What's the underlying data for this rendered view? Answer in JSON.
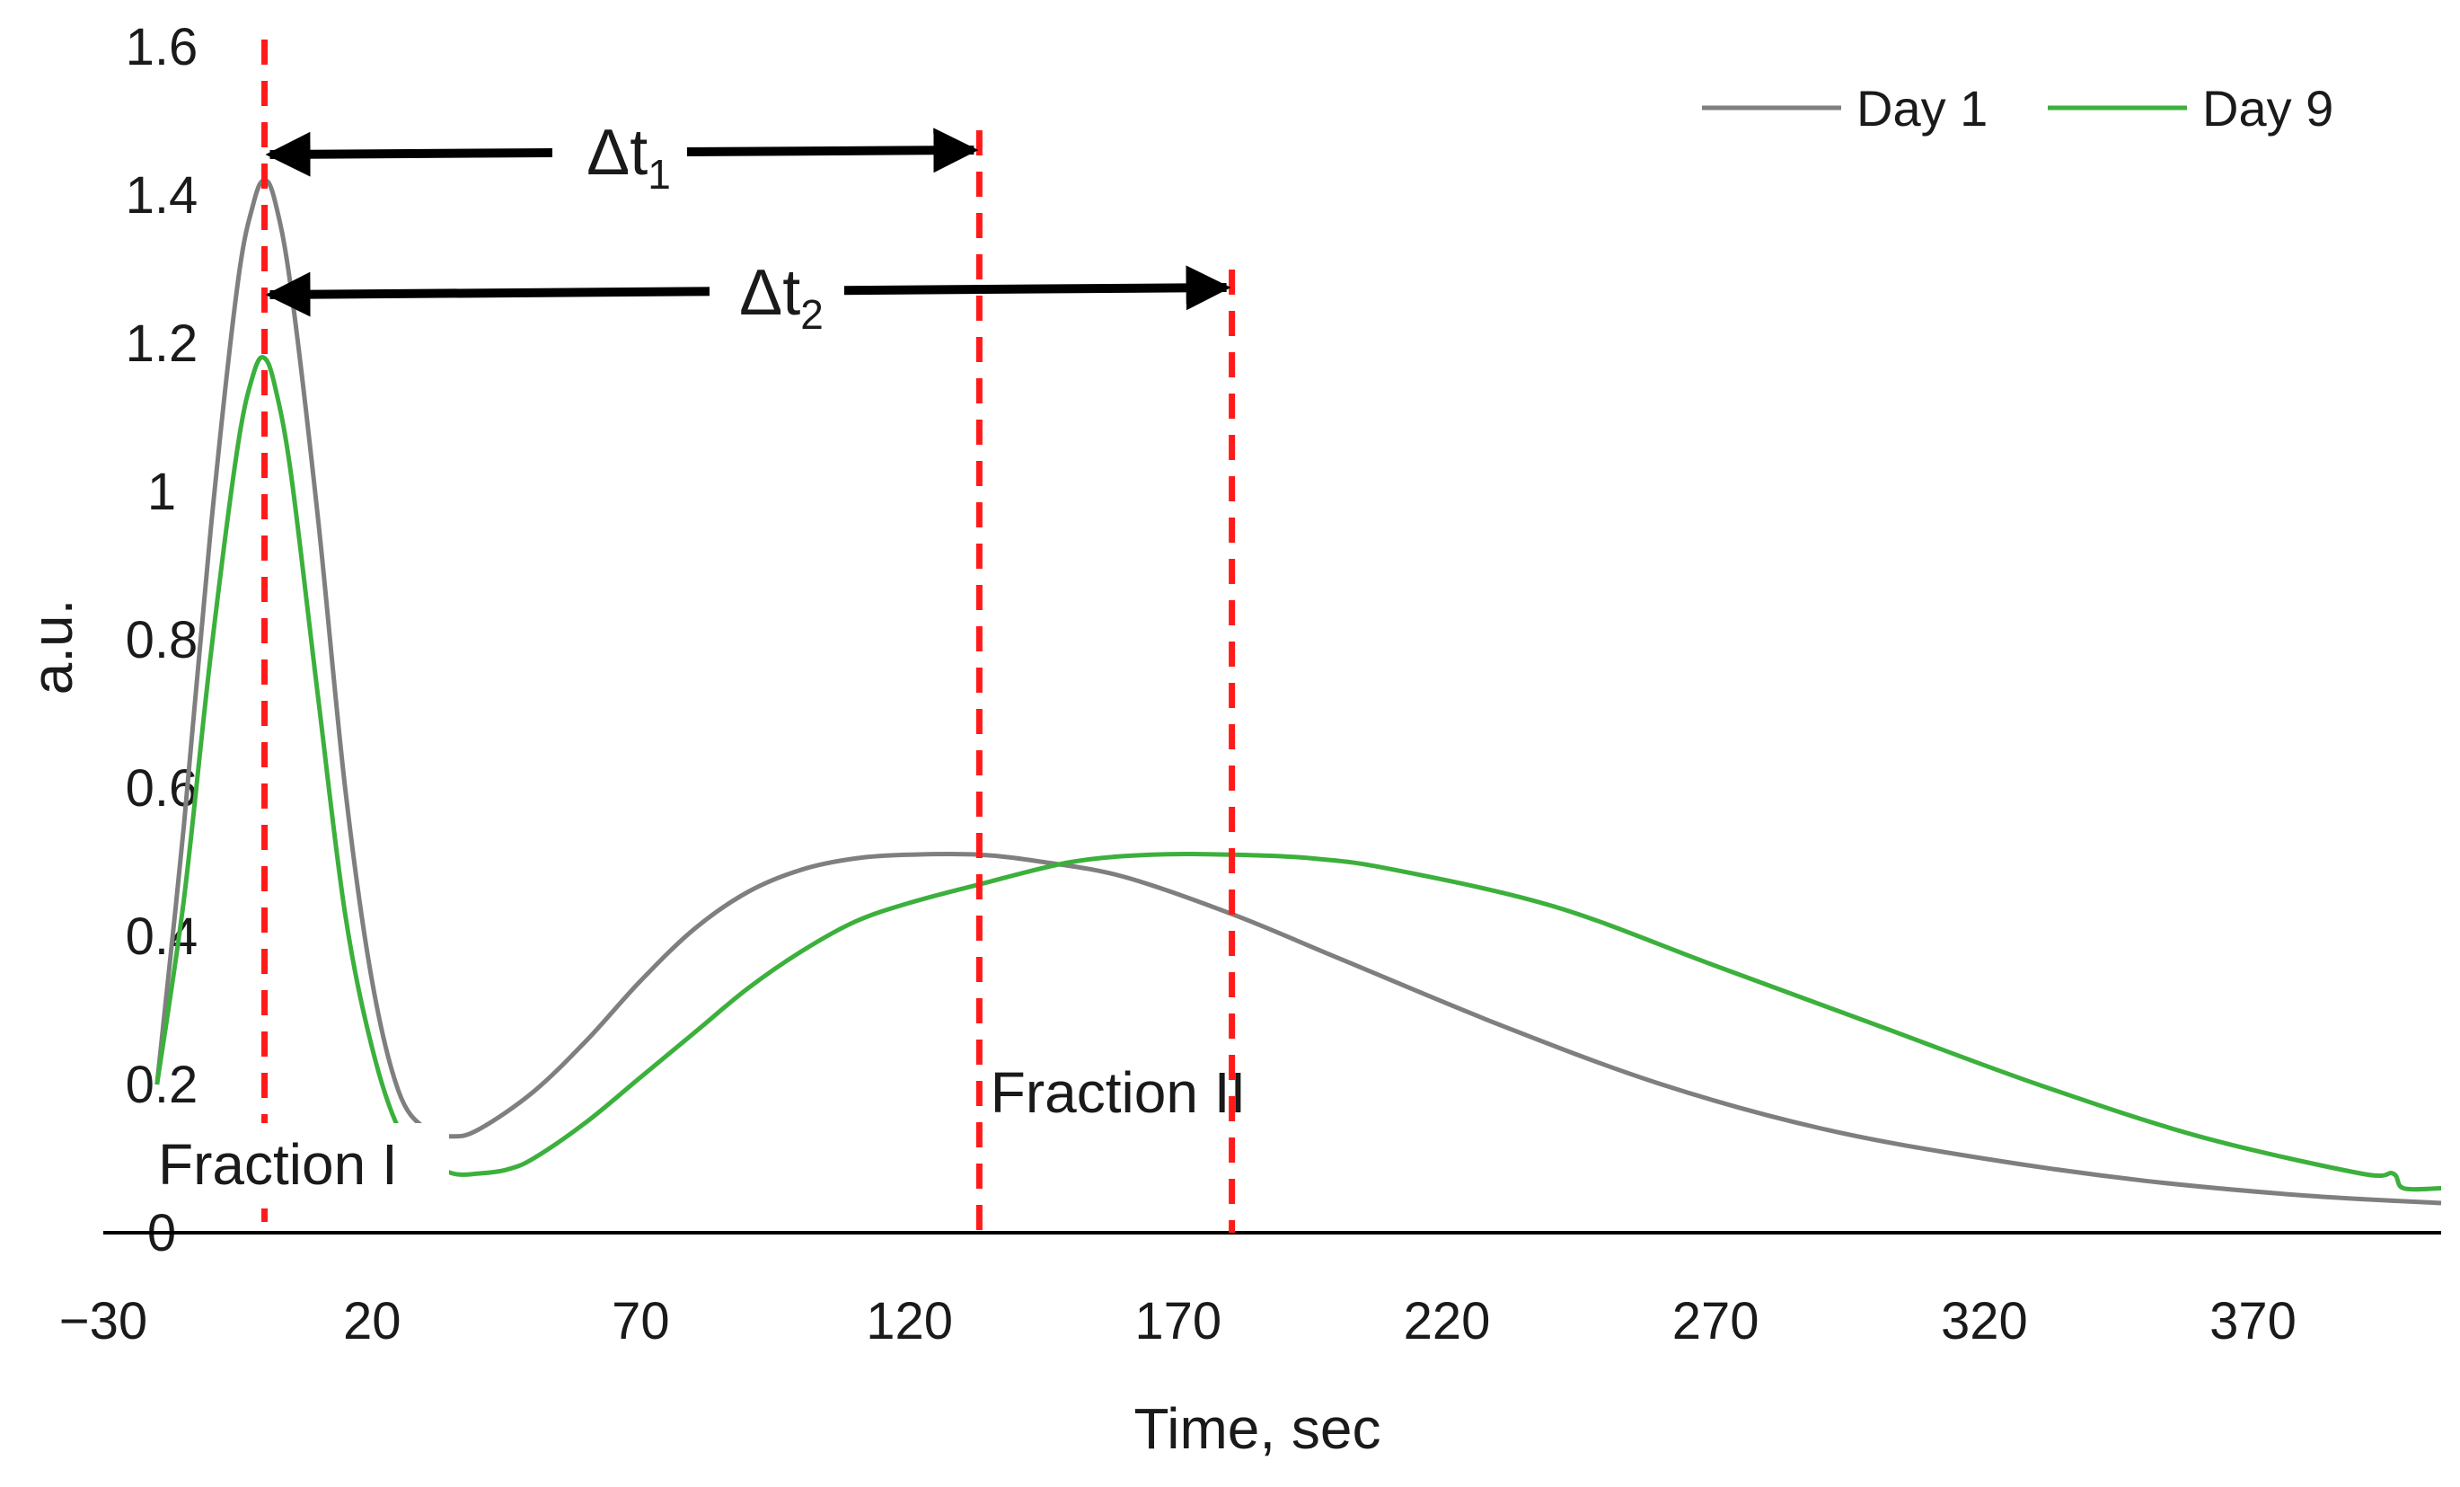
{
  "chart_data": {
    "type": "line",
    "title": "",
    "xlabel": "Time, sec",
    "ylabel": "a.u.",
    "xlim": [
      -30,
      405
    ],
    "ylim": [
      0,
      1.6
    ],
    "x_ticks": [
      "−30",
      "20",
      "70",
      "120",
      "170",
      "220",
      "270",
      "320",
      "370"
    ],
    "x_tick_values": [
      -30,
      20,
      70,
      120,
      170,
      220,
      270,
      320,
      370
    ],
    "y_ticks": [
      "0",
      "0.2",
      "0.4",
      "0.6",
      "0.8",
      "1",
      "1.2",
      "1.4",
      "1.6"
    ],
    "y_tick_values": [
      0,
      0.2,
      0.4,
      0.6,
      0.8,
      1.0,
      1.2,
      1.4,
      1.6
    ],
    "grid": false,
    "legend_position": "top-right",
    "series": [
      {
        "name": "Day 1",
        "color": "#7f7f7f",
        "x": [
          -20,
          -15,
          -10,
          -5,
          -2,
          0,
          2,
          5,
          10,
          15,
          20,
          25,
          30,
          35,
          40,
          50,
          60,
          70,
          80,
          90,
          100,
          110,
          120,
          133,
          145,
          160,
          180,
          200,
          230,
          260,
          290,
          320,
          350,
          380,
          405
        ],
        "values": [
          0.2,
          0.55,
          0.95,
          1.28,
          1.39,
          1.42,
          1.39,
          1.27,
          0.96,
          0.6,
          0.34,
          0.19,
          0.14,
          0.13,
          0.14,
          0.19,
          0.26,
          0.34,
          0.41,
          0.46,
          0.49,
          0.505,
          0.51,
          0.51,
          0.5,
          0.48,
          0.43,
          0.37,
          0.28,
          0.2,
          0.14,
          0.1,
          0.07,
          0.05,
          0.04
        ]
      },
      {
        "name": "Day 9",
        "color": "#3cb03c",
        "x": [
          -20,
          -15,
          -10,
          -5,
          -2,
          0,
          2,
          5,
          10,
          15,
          20,
          25,
          30,
          35,
          40,
          45,
          50,
          60,
          70,
          80,
          90,
          100,
          110,
          120,
          133,
          150,
          165,
          180,
          195,
          210,
          240,
          270,
          300,
          330,
          360,
          390,
          396,
          398,
          405
        ],
        "values": [
          0.2,
          0.45,
          0.78,
          1.06,
          1.16,
          1.18,
          1.14,
          1.02,
          0.72,
          0.43,
          0.25,
          0.14,
          0.1,
          0.08,
          0.08,
          0.085,
          0.1,
          0.15,
          0.21,
          0.27,
          0.33,
          0.38,
          0.42,
          0.445,
          0.47,
          0.5,
          0.51,
          0.51,
          0.505,
          0.49,
          0.44,
          0.36,
          0.28,
          0.2,
          0.13,
          0.08,
          0.08,
          0.06,
          0.06
        ]
      }
    ],
    "markers": [
      {
        "name": "peak-I",
        "x": 0
      },
      {
        "name": "peak-II-day1",
        "x": 133
      },
      {
        "name": "peak-II-day9",
        "x": 180
      }
    ],
    "annotations": {
      "fraction_i": "Fraction I",
      "fraction_ii": "Fraction II",
      "delta_symbol": "Δt",
      "dt1_subscript": "1",
      "dt2_subscript": "2"
    }
  },
  "colors": {
    "axis": "#000000",
    "marker_line": "#ff1a1a",
    "arrow": "#000000"
  }
}
